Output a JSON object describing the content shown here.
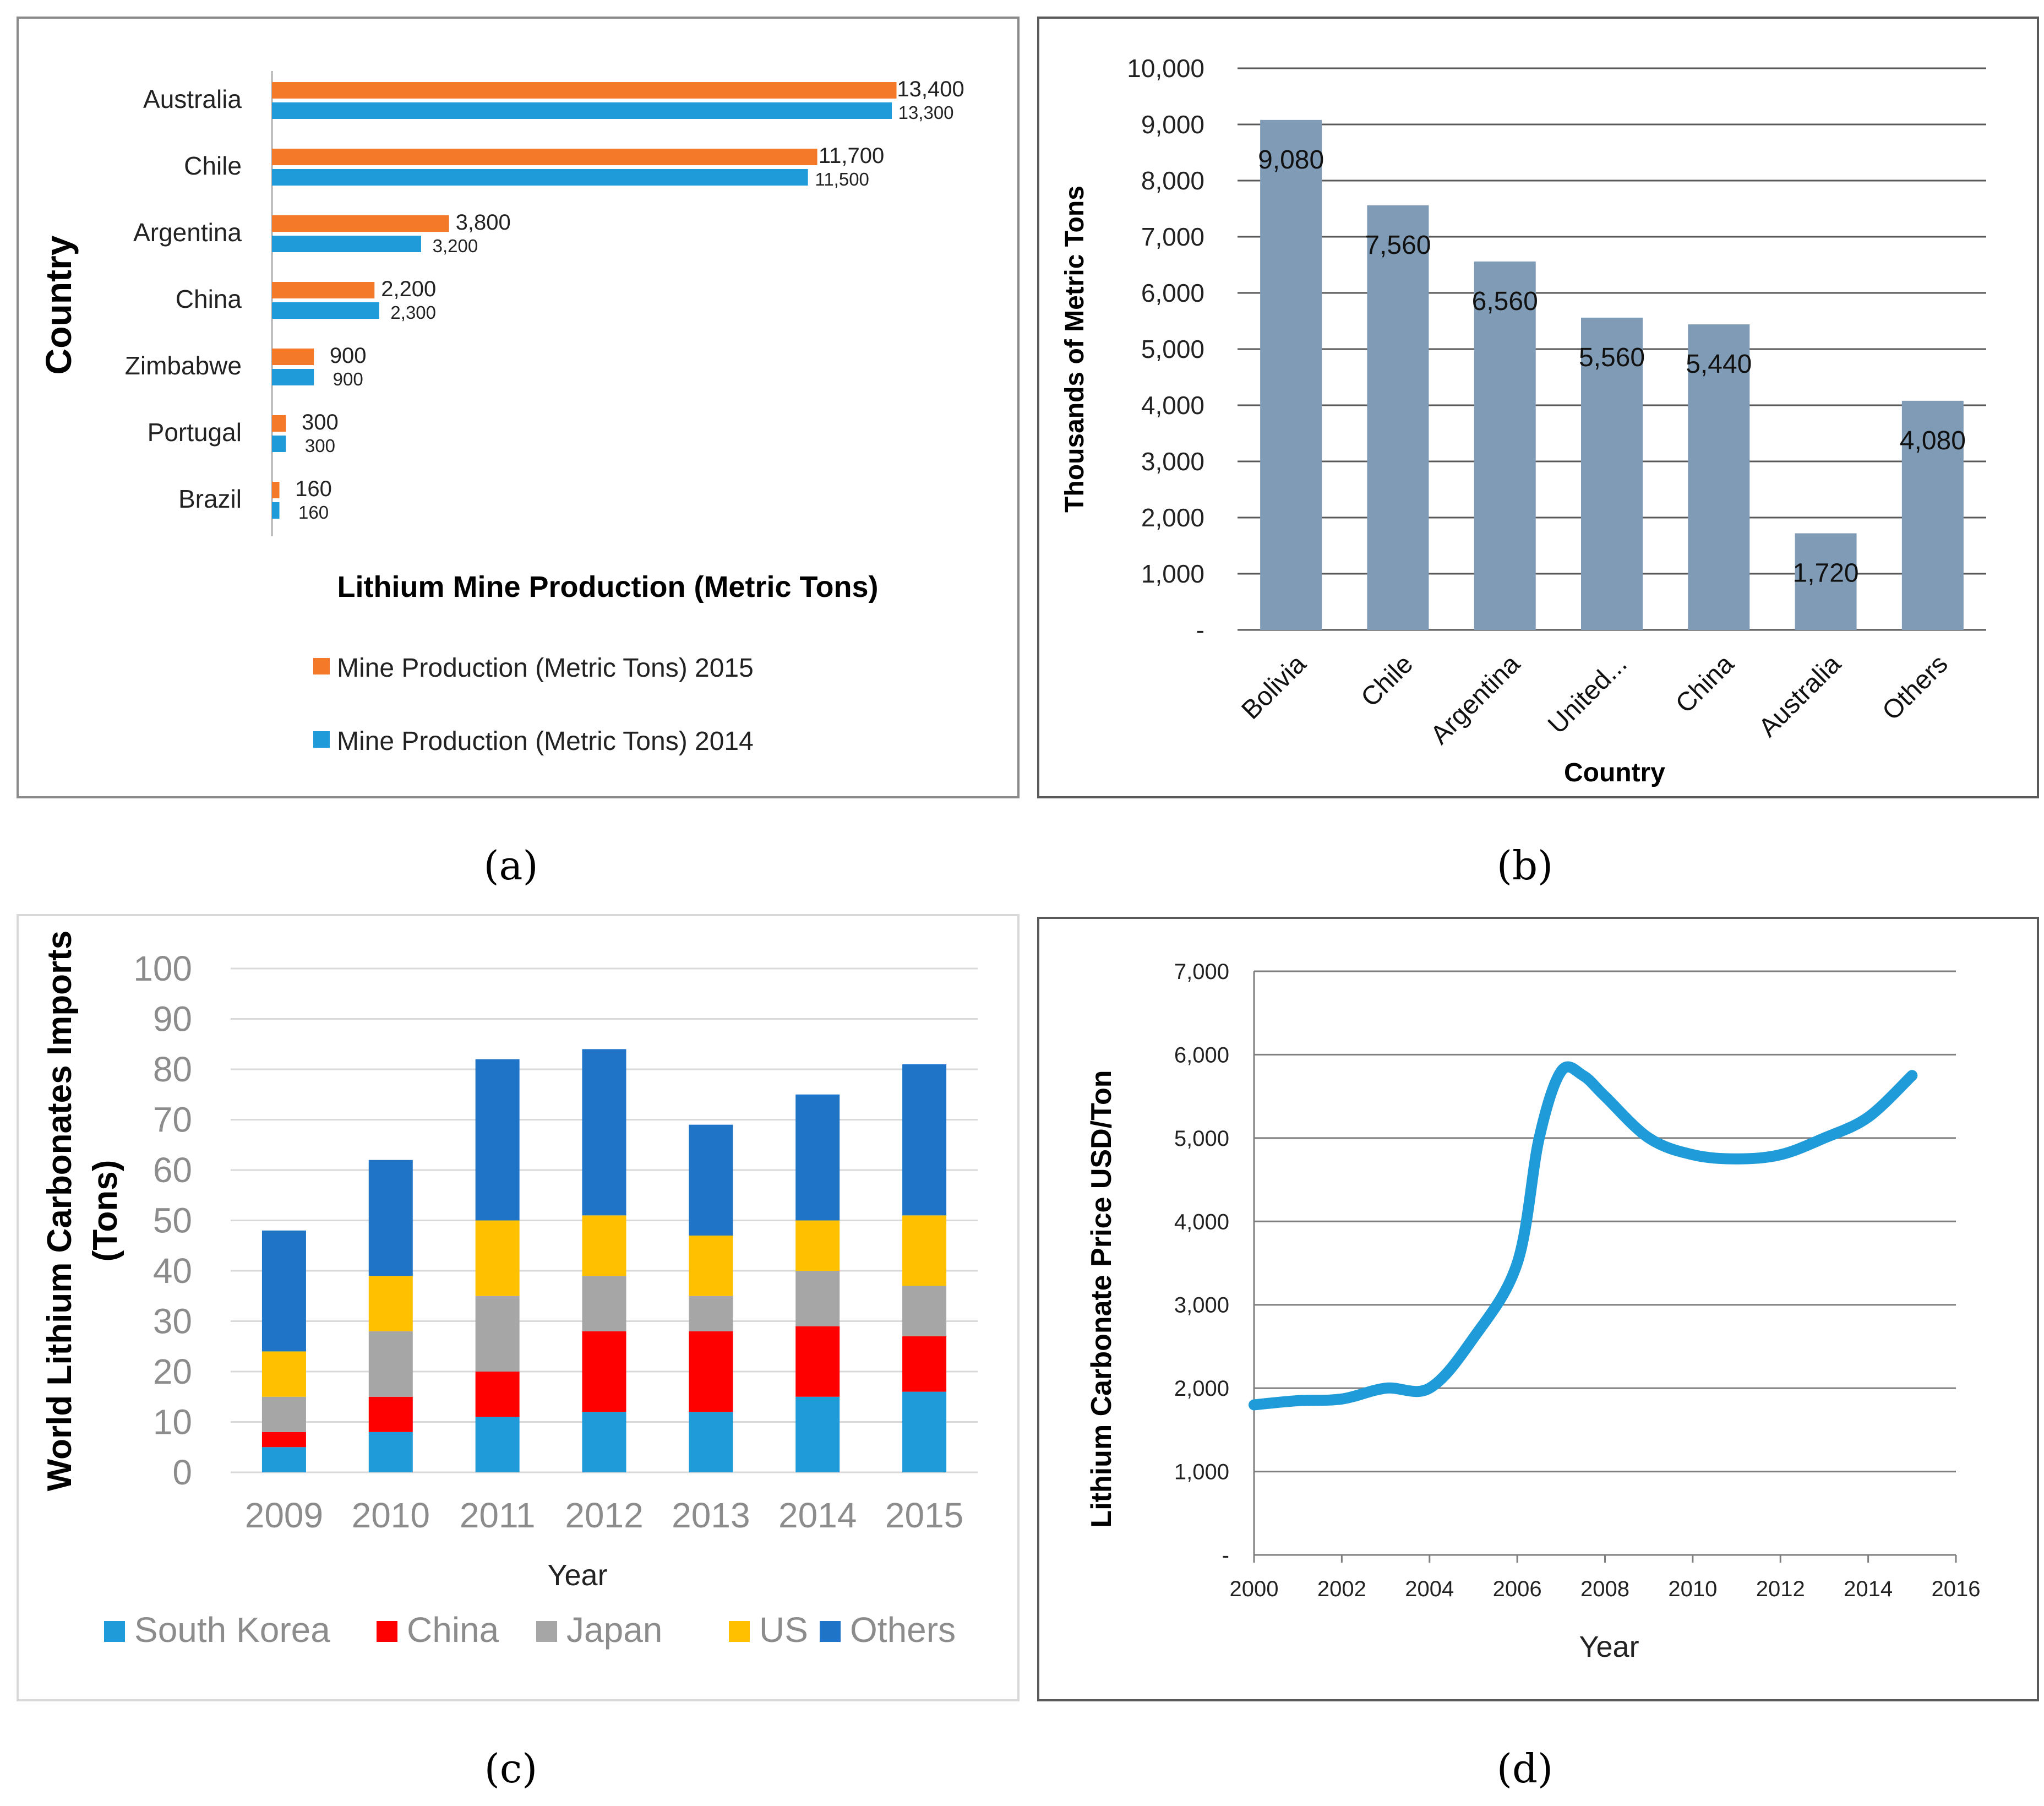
{
  "chart_data": [
    {
      "id": "a",
      "type": "bar",
      "orientation": "horizontal",
      "caption": "(a)",
      "xlabel": "Lithium Mine Production (Metric Tons)",
      "ylabel": "Country",
      "categories": [
        "Australia",
        "Chile",
        "Argentina",
        "China",
        "Zimbabwe",
        "Portugal",
        "Brazil"
      ],
      "series": [
        {
          "name": "Mine Production (Metric Tons) 2015",
          "color": "#F47A2A",
          "values": [
            13400,
            11700,
            3800,
            2200,
            900,
            300,
            160
          ],
          "labels": [
            "13,400",
            "11,700",
            "3,800",
            "2,200",
            "900",
            "300",
            "160"
          ]
        },
        {
          "name": "Mine Production (Metric Tons) 2014",
          "color": "#1E9BD8",
          "values": [
            13300,
            11500,
            3200,
            2300,
            900,
            300,
            160
          ],
          "labels": [
            "13,300",
            "11,500",
            "3,200",
            "2,300",
            "900",
            "300",
            "160"
          ]
        }
      ],
      "xlim": [
        0,
        15000
      ],
      "legend": "bottom"
    },
    {
      "id": "b",
      "type": "bar",
      "caption": "(b)",
      "xlabel": "Country",
      "ylabel": "Thousands of Metric Tons",
      "categories": [
        "Bolivia",
        "Chile",
        "Argentina",
        "United...",
        "China",
        "Australia",
        "Others"
      ],
      "values": [
        9080,
        7560,
        6560,
        5560,
        5440,
        1720,
        4080
      ],
      "labels": [
        "9,080",
        "7,560",
        "6,560",
        "5,560",
        "5,440",
        "1,720",
        "4,080"
      ],
      "color": "#7F9BB5",
      "ylim": [
        0,
        10000
      ],
      "yticks": [
        "-",
        "1,000",
        "2,000",
        "3,000",
        "4,000",
        "5,000",
        "6,000",
        "7,000",
        "8,000",
        "9,000",
        "10,000"
      ],
      "grid": true
    },
    {
      "id": "c",
      "type": "bar",
      "stacked": true,
      "caption": "(c)",
      "xlabel": "Year",
      "ylabel": "World Lithium Carbonates Imports (Tons)",
      "ylabel_lines": [
        "World Lithium Carbonates Imports",
        "(Tons)"
      ],
      "categories": [
        "2009",
        "2010",
        "2011",
        "2012",
        "2013",
        "2014",
        "2015"
      ],
      "series": [
        {
          "name": "South Korea",
          "color": "#1E9BD8",
          "values": [
            5,
            8,
            11,
            12,
            12,
            15,
            16
          ]
        },
        {
          "name": "China",
          "color": "#FF0000",
          "values": [
            3,
            7,
            9,
            16,
            16,
            14,
            11
          ]
        },
        {
          "name": "Japan",
          "color": "#A6A6A6",
          "values": [
            7,
            13,
            15,
            11,
            7,
            11,
            10
          ]
        },
        {
          "name": "US",
          "color": "#FFC000",
          "values": [
            9,
            11,
            15,
            12,
            12,
            10,
            14
          ]
        },
        {
          "name": "Others",
          "color": "#1F74C8",
          "values": [
            24,
            23,
            32,
            33,
            22,
            25,
            30
          ]
        }
      ],
      "ylim": [
        0,
        100
      ],
      "yticks": [
        "0",
        "10",
        "20",
        "30",
        "40",
        "50",
        "60",
        "70",
        "80",
        "90",
        "100"
      ],
      "grid": true,
      "legend": "bottom"
    },
    {
      "id": "d",
      "type": "line",
      "caption": "(d)",
      "xlabel": "Year",
      "ylabel": "Lithium Carbonate Price USD/Ton",
      "xlim": [
        2000,
        2016
      ],
      "ylim": [
        0,
        7000
      ],
      "xticks": [
        "2000",
        "2002",
        "2004",
        "2006",
        "2008",
        "2010",
        "2012",
        "2014",
        "2016"
      ],
      "yticks": [
        "-",
        "1,000",
        "2,000",
        "3,000",
        "4,000",
        "5,000",
        "6,000",
        "7,000"
      ],
      "color": "#1E9BD8",
      "x": [
        2000,
        2001,
        2002,
        2003,
        2004,
        2005,
        2006,
        2006.5,
        2007,
        2007.5,
        2008,
        2009,
        2010,
        2011,
        2012,
        2013,
        2014,
        2015
      ],
      "y": [
        1800,
        1850,
        1870,
        2000,
        2000,
        2600,
        3500,
        5000,
        5800,
        5750,
        5500,
        5000,
        4800,
        4750,
        4800,
        5000,
        5250,
        5750
      ],
      "grid": true
    }
  ]
}
